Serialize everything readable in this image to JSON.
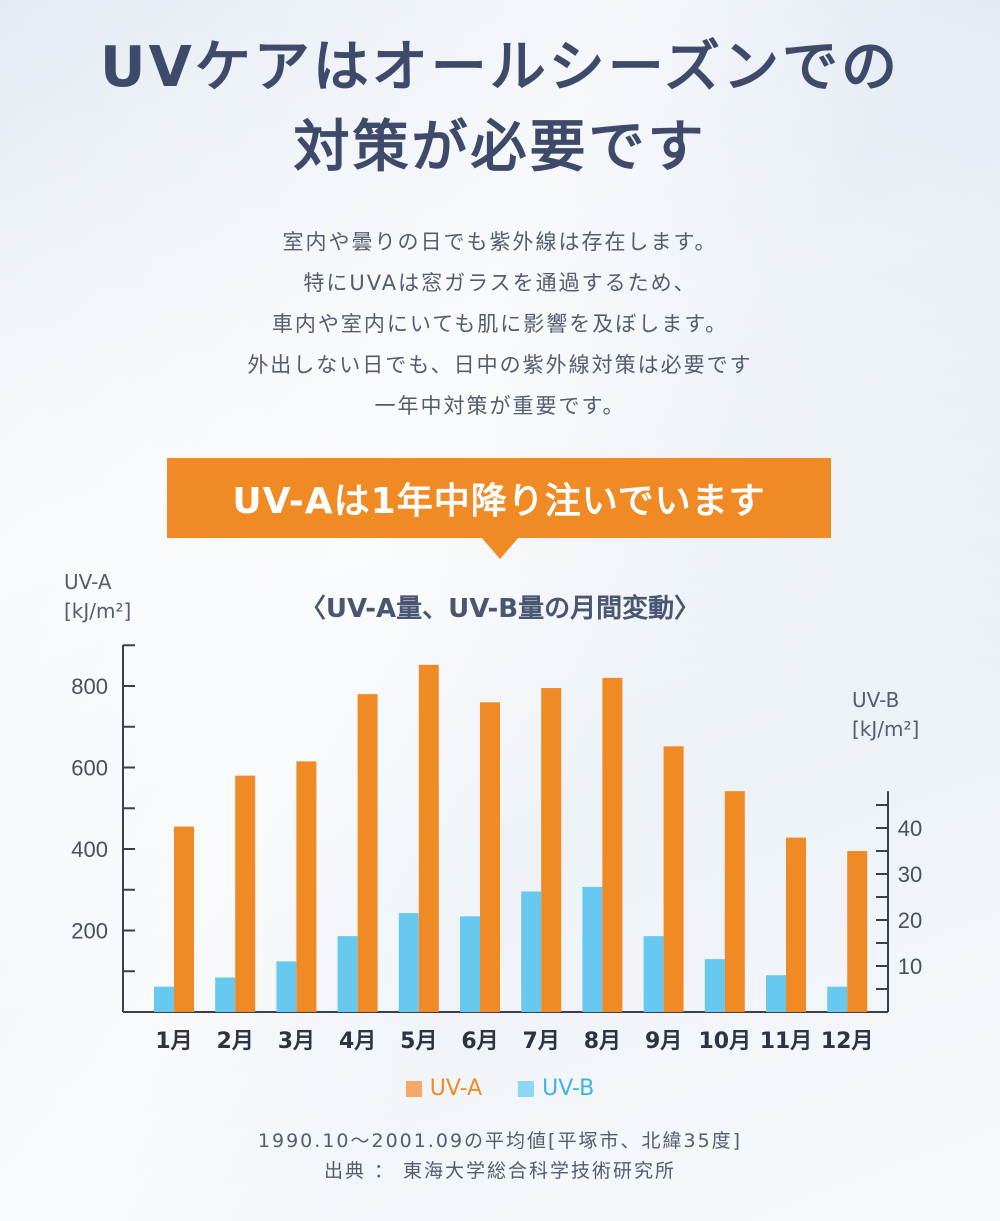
{
  "headline": {
    "line1": "UVケアはオールシーズンでの",
    "line2": "対策が必要です"
  },
  "intro": [
    "室内や曇りの日でも紫外線は存在します。",
    "特にUVAは窓ガラスを通過するため、",
    "車内や室内にいても肌に影響を及ぼします。",
    "外出しない日でも、日中の紫外線対策は必要です",
    "一年中対策が重要です。"
  ],
  "banner": "UV-Aは1年中降り注いでいます",
  "source": {
    "line1": "1990.10～2001.09の平均値[平塚市、北緯35度]",
    "line2": "出典 ： 東海大学総合科学技術研究所"
  },
  "colors": {
    "uva": "#f08a24",
    "uvb": "#68c9f0",
    "banner": "#f08a24",
    "axis": "#3a3f4a"
  },
  "chart_data": {
    "type": "bar",
    "title": "〈UV-A量、UV-B量の月間変動〉",
    "categories": [
      "1月",
      "2月",
      "3月",
      "4月",
      "5月",
      "6月",
      "7月",
      "8月",
      "9月",
      "10月",
      "11月",
      "12月"
    ],
    "left_axis": {
      "label_line1": "UV-A",
      "label_line2": "[kJ/m²]",
      "ticks": [
        200,
        400,
        600,
        800
      ],
      "ylim": [
        0,
        900
      ]
    },
    "right_axis": {
      "label_line1": "UV-B",
      "label_line2": "[kJ/m²]",
      "ticks": [
        10,
        20,
        30,
        40
      ],
      "ylim": [
        0,
        48
      ]
    },
    "series": [
      {
        "name": "UV-A",
        "axis": "left",
        "values": [
          455,
          580,
          615,
          780,
          852,
          760,
          795,
          820,
          652,
          542,
          428,
          395
        ]
      },
      {
        "name": "UV-B",
        "axis": "right",
        "values": [
          5.5,
          7.5,
          11,
          16.5,
          21.5,
          20.8,
          26.2,
          27.2,
          16.5,
          11.5,
          8,
          5.5
        ]
      }
    ],
    "legend": "bottom",
    "grid": false
  }
}
